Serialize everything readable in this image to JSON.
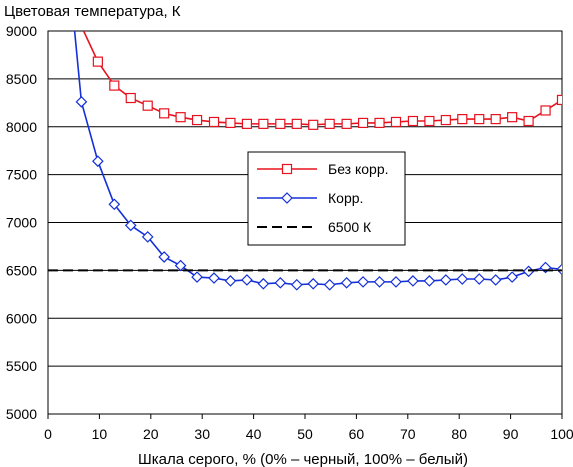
{
  "chart_data": {
    "type": "line",
    "title": "Цветовая температура, К",
    "xlabel": "Шкала серого, % (0% – черный, 100% – белый)",
    "ylabel": "",
    "xlim": [
      0,
      100
    ],
    "ylim": [
      5000,
      9000
    ],
    "xticks": [
      "0",
      "10",
      "20",
      "30",
      "40",
      "50",
      "60",
      "70",
      "80",
      "90",
      "100"
    ],
    "yticks": [
      "5000",
      "5500",
      "6000",
      "6500",
      "7000",
      "7500",
      "8000",
      "8500",
      "9000"
    ],
    "grid": "horizontal",
    "legend_position": "right-middle",
    "series": [
      {
        "name": "Без корр.",
        "color": "#e8121f",
        "marker": "square",
        "points": [
          {
            "x": 6.5,
            "y": 9050
          },
          {
            "x": 9.7,
            "y": 8680
          },
          {
            "x": 12.9,
            "y": 8430
          },
          {
            "x": 16.1,
            "y": 8300
          },
          {
            "x": 19.4,
            "y": 8220
          },
          {
            "x": 22.6,
            "y": 8140
          },
          {
            "x": 25.8,
            "y": 8100
          },
          {
            "x": 29.0,
            "y": 8070
          },
          {
            "x": 32.3,
            "y": 8050
          },
          {
            "x": 35.5,
            "y": 8040
          },
          {
            "x": 38.7,
            "y": 8030
          },
          {
            "x": 41.9,
            "y": 8030
          },
          {
            "x": 45.2,
            "y": 8030
          },
          {
            "x": 48.4,
            "y": 8030
          },
          {
            "x": 51.6,
            "y": 8020
          },
          {
            "x": 54.8,
            "y": 8030
          },
          {
            "x": 58.1,
            "y": 8030
          },
          {
            "x": 61.3,
            "y": 8040
          },
          {
            "x": 64.5,
            "y": 8040
          },
          {
            "x": 67.7,
            "y": 8050
          },
          {
            "x": 71.0,
            "y": 8060
          },
          {
            "x": 74.2,
            "y": 8060
          },
          {
            "x": 77.4,
            "y": 8070
          },
          {
            "x": 80.6,
            "y": 8080
          },
          {
            "x": 83.9,
            "y": 8080
          },
          {
            "x": 87.1,
            "y": 8080
          },
          {
            "x": 90.3,
            "y": 8100
          },
          {
            "x": 93.5,
            "y": 8060
          },
          {
            "x": 96.8,
            "y": 8170
          },
          {
            "x": 100,
            "y": 8280
          }
        ]
      },
      {
        "name": "Корр.",
        "color": "#1530d8",
        "marker": "diamond",
        "points": [
          {
            "x": 5.0,
            "y": 9100
          },
          {
            "x": 6.5,
            "y": 8260
          },
          {
            "x": 9.7,
            "y": 7640
          },
          {
            "x": 12.9,
            "y": 7190
          },
          {
            "x": 16.1,
            "y": 6970
          },
          {
            "x": 19.4,
            "y": 6850
          },
          {
            "x": 22.6,
            "y": 6640
          },
          {
            "x": 25.8,
            "y": 6550
          },
          {
            "x": 29.0,
            "y": 6430
          },
          {
            "x": 32.3,
            "y": 6420
          },
          {
            "x": 35.5,
            "y": 6390
          },
          {
            "x": 38.7,
            "y": 6400
          },
          {
            "x": 41.9,
            "y": 6360
          },
          {
            "x": 45.2,
            "y": 6370
          },
          {
            "x": 48.4,
            "y": 6350
          },
          {
            "x": 51.6,
            "y": 6360
          },
          {
            "x": 54.8,
            "y": 6350
          },
          {
            "x": 58.1,
            "y": 6370
          },
          {
            "x": 61.3,
            "y": 6380
          },
          {
            "x": 64.5,
            "y": 6380
          },
          {
            "x": 67.7,
            "y": 6380
          },
          {
            "x": 71.0,
            "y": 6390
          },
          {
            "x": 74.2,
            "y": 6390
          },
          {
            "x": 77.4,
            "y": 6400
          },
          {
            "x": 80.6,
            "y": 6410
          },
          {
            "x": 83.9,
            "y": 6410
          },
          {
            "x": 87.1,
            "y": 6400
          },
          {
            "x": 90.3,
            "y": 6430
          },
          {
            "x": 93.5,
            "y": 6490
          },
          {
            "x": 96.8,
            "y": 6530
          },
          {
            "x": 100,
            "y": 6510
          }
        ]
      },
      {
        "name": "6500 К",
        "color": "#000000",
        "style": "dashed",
        "points": [
          {
            "x": 0,
            "y": 6500
          },
          {
            "x": 100,
            "y": 6500
          }
        ]
      }
    ]
  }
}
